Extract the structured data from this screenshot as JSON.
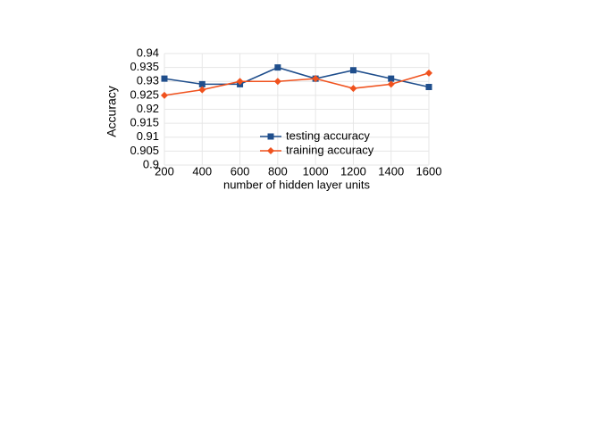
{
  "chart_data": {
    "type": "line",
    "x_label": "number of hidden layer units",
    "y_label": "Accuracy",
    "x": [
      200,
      400,
      600,
      800,
      1000,
      1200,
      1400,
      1600
    ],
    "series": [
      {
        "name": "testing accuracy",
        "color": "#1f4e8c",
        "marker": "square",
        "values": [
          0.931,
          0.929,
          0.929,
          0.935,
          0.931,
          0.934,
          0.931,
          0.928
        ]
      },
      {
        "name": "training accuracy",
        "color": "#f0521e",
        "marker": "diamond",
        "values": [
          0.925,
          0.927,
          0.93,
          0.93,
          0.931,
          0.9275,
          0.929,
          0.933
        ]
      }
    ],
    "xlim": [
      200,
      1600
    ],
    "xticks": [
      200,
      400,
      600,
      800,
      1000,
      1200,
      1400,
      1600
    ],
    "ylim": [
      0.9,
      0.94
    ],
    "yticks": [
      0.9,
      0.905,
      0.91,
      0.915,
      0.92,
      0.925,
      0.93,
      0.935,
      0.94
    ],
    "grid": true,
    "legend": "inside"
  }
}
